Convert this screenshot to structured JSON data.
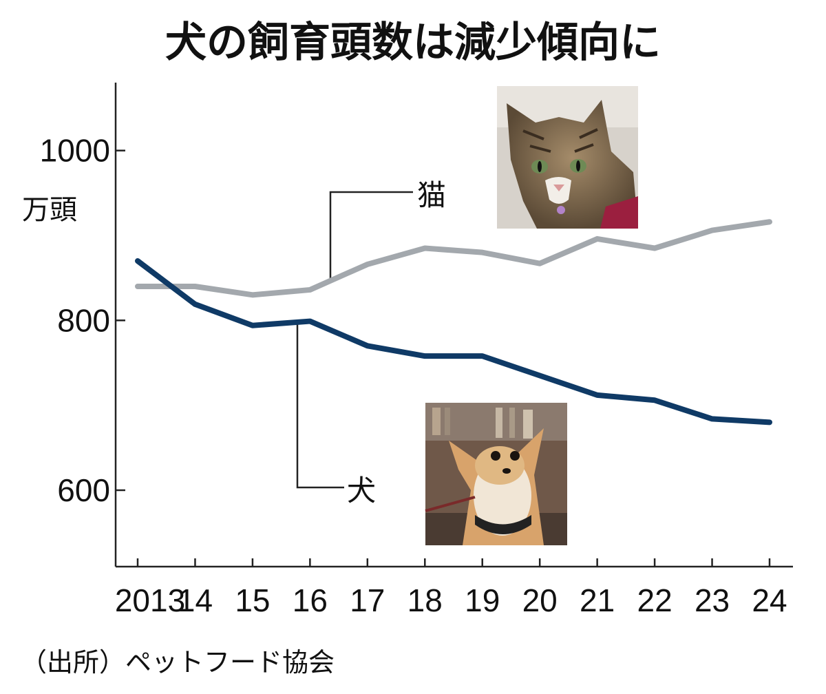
{
  "title": "犬の飼育頭数は減少傾向に",
  "source": "（出所）ペットフード協会",
  "chart_data": {
    "type": "line",
    "x": [
      "2013",
      "14",
      "15",
      "16",
      "17",
      "18",
      "19",
      "20",
      "21",
      "22",
      "23",
      "24"
    ],
    "y_unit": "万頭",
    "ylim": [
      510,
      1080
    ],
    "y_ticks": [
      600,
      800,
      1000
    ],
    "y_tick_labels": [
      "600",
      "800",
      "1000"
    ],
    "grid": false,
    "series": [
      {
        "name": "猫",
        "color": "#a3a8ad",
        "values": [
          840,
          840,
          830,
          836,
          866,
          885,
          880,
          867,
          896,
          885,
          906,
          916
        ]
      },
      {
        "name": "犬",
        "color": "#0f3a66",
        "values": [
          870,
          819,
          794,
          799,
          770,
          758,
          758,
          735,
          712,
          706,
          684,
          680
        ]
      }
    ]
  },
  "photos": {
    "cat": "cat-photo",
    "dog": "dog-photo"
  }
}
